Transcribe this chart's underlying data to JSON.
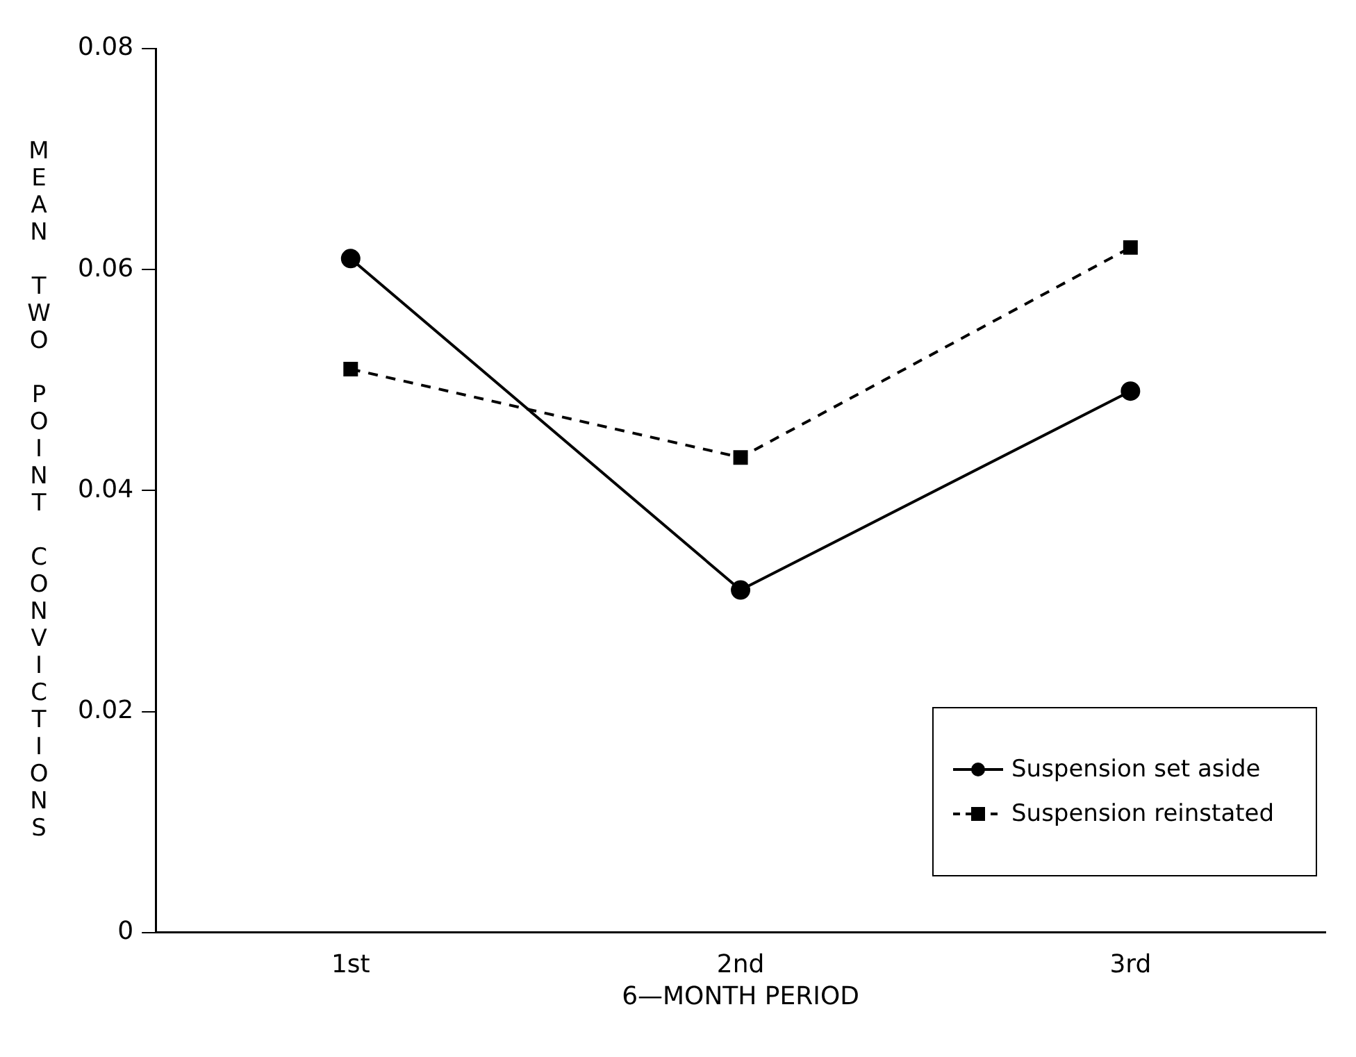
{
  "chart_data": {
    "type": "line",
    "xlabel": "6—MONTH PERIOD",
    "ylabel": "MEAN TWO POINT CONVICTIONS",
    "categories": [
      "1st",
      "2nd",
      "3rd"
    ],
    "series": [
      {
        "name": "Suspension set aside",
        "color": "#000000",
        "values": [
          0.061,
          0.031,
          0.049
        ],
        "marker": "circle",
        "line_style": "solid"
      },
      {
        "name": "Suspension reinstated",
        "color": "#000000",
        "values": [
          0.051,
          0.043,
          0.062
        ],
        "marker": "square",
        "line_style": "dashed"
      }
    ],
    "ylim": [
      0,
      0.08
    ],
    "yticks": [
      {
        "value": 0,
        "label": "0"
      },
      0.02,
      0.04,
      0.06,
      0.08
    ],
    "grid": false,
    "legend": "bottom right"
  }
}
